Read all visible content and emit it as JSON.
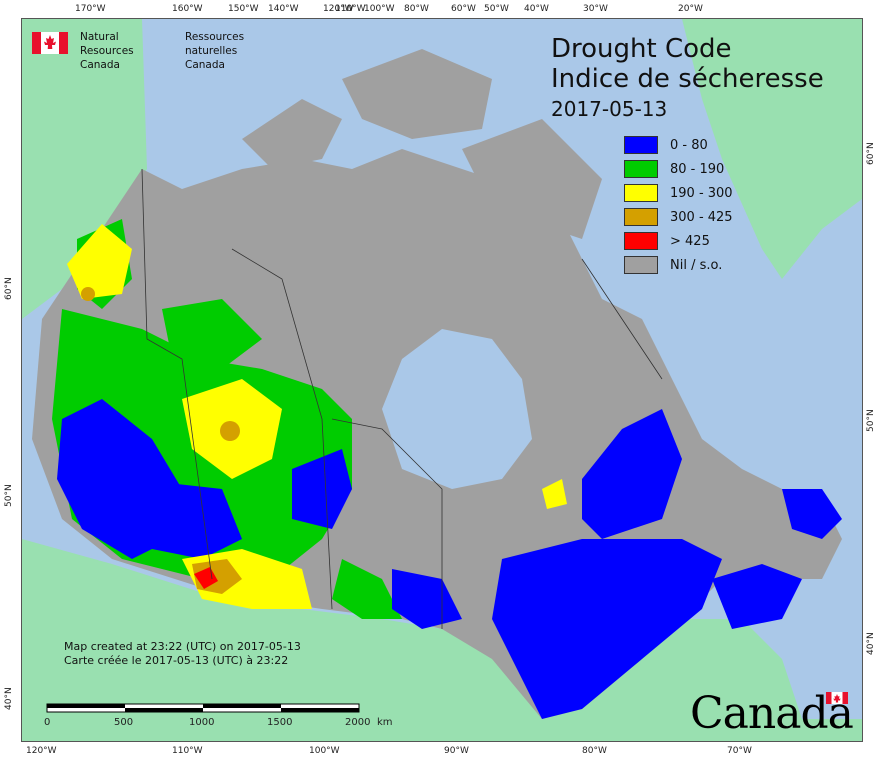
{
  "header": {
    "agency_en": [
      "Natural Resources",
      "Canada"
    ],
    "agency_fr": [
      "Ressources naturelles",
      "Canada"
    ]
  },
  "title": {
    "en": "Drought Code",
    "fr": "Indice de sécheresse",
    "date": "2017-05-13"
  },
  "legend": [
    {
      "label": "0 - 80",
      "color": "#0000ff"
    },
    {
      "label": "80 - 190",
      "color": "#00cc00"
    },
    {
      "label": "190 - 300",
      "color": "#ffff00"
    },
    {
      "label": "300 - 425",
      "color": "#d4a000"
    },
    {
      "label": "> 425",
      "color": "#ff0000"
    },
    {
      "label": "Nil / s.o.",
      "color": "#a0a0a0"
    }
  ],
  "created": {
    "en": "Map created at 23:22 (UTC) on 2017-05-13",
    "fr": "Carte créée le 2017-05-13 (UTC) à 23:22"
  },
  "scale": {
    "ticks": [
      "0",
      "500",
      "1000",
      "1500",
      "2000"
    ],
    "unit": "km"
  },
  "graticule": {
    "top": [
      "170°W",
      "160°W",
      "150°W",
      "140°W",
      "120°W",
      "110°W",
      "100°W",
      "80°W",
      "60°W",
      "50°W",
      "40°W",
      "30°W",
      "20°W"
    ],
    "bottom": [
      "120°W",
      "110°W",
      "100°W",
      "90°W",
      "80°W",
      "70°W"
    ],
    "left": [
      "60°N",
      "50°N",
      "40°N"
    ],
    "right": [
      "60°N",
      "50°N",
      "40°N"
    ]
  },
  "wordmark": "Canada",
  "colors": {
    "water": "#aac8e8",
    "land_foreign": "#99e0b0",
    "nil": "#a0a0a0",
    "flag_red": "#e8112d"
  }
}
